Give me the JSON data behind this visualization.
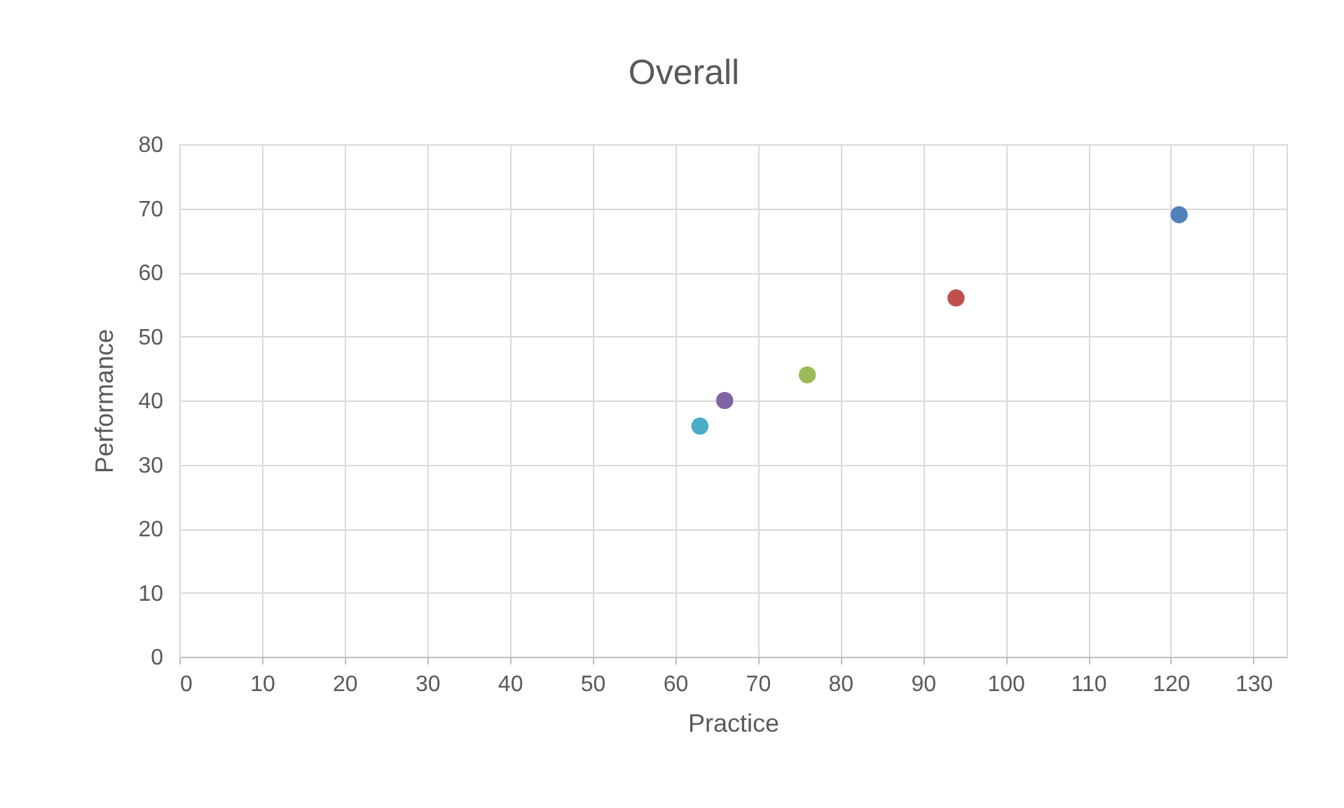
{
  "chart_data": {
    "type": "scatter",
    "title": "Overall",
    "xlabel": "Practice",
    "ylabel": "Performance",
    "x": [
      121,
      94,
      76,
      66,
      63
    ],
    "values": [
      69,
      56,
      44,
      40,
      36
    ],
    "colors": [
      "#4f81bd",
      "#c0504d",
      "#9bbb59",
      "#8064a2",
      "#4bacc6"
    ],
    "xlim": [
      0,
      134
    ],
    "xticks": [
      0,
      10,
      20,
      30,
      40,
      50,
      60,
      70,
      80,
      90,
      100,
      110,
      120,
      130
    ],
    "ylim": [
      0,
      80
    ],
    "yticks": [
      0,
      10,
      20,
      30,
      40,
      50,
      60,
      70,
      80
    ],
    "grid": true,
    "marker": "circle"
  }
}
